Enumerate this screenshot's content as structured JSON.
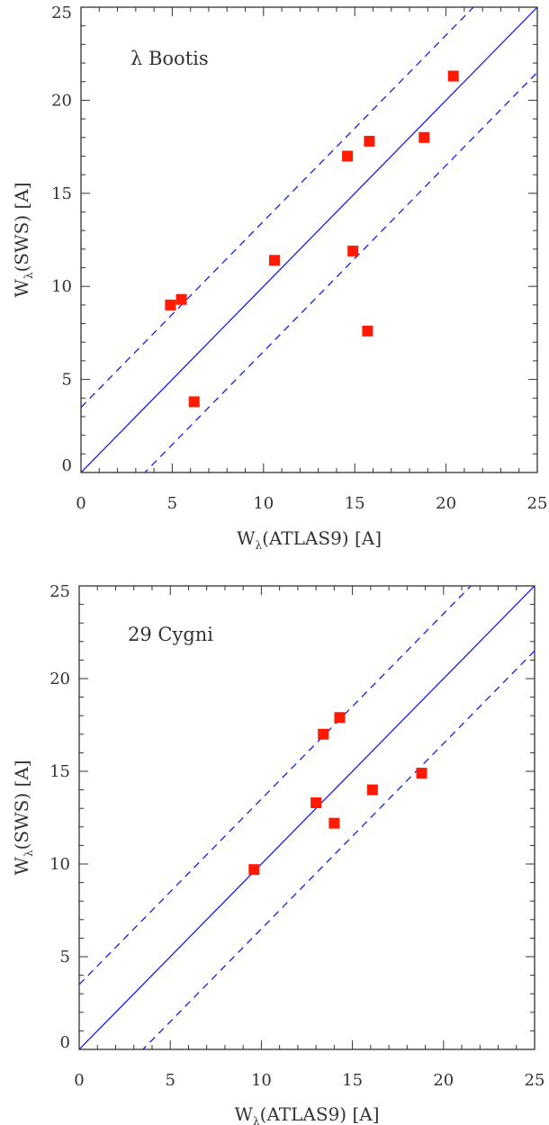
{
  "chart_data": [
    {
      "type": "scatter",
      "annotation": "λ Bootis",
      "xlabel": {
        "main": "W",
        "sub": "λ",
        "rest": "(ATLAS9) [A]"
      },
      "ylabel": {
        "main": "W",
        "sub": "λ",
        "rest": "(SWS) [A]"
      },
      "xlim": [
        0,
        25
      ],
      "ylim": [
        0,
        25
      ],
      "xticks": [
        "0",
        "5",
        "10",
        "15",
        "20",
        "25"
      ],
      "yticks": [
        "0",
        "5",
        "10",
        "15",
        "20",
        "25"
      ],
      "grid": false,
      "reference_lines": [
        {
          "style": "solid",
          "slope": 1,
          "intercept": 0
        },
        {
          "style": "dashed",
          "slope": 1,
          "intercept": 3.5
        },
        {
          "style": "dashed",
          "slope": 1,
          "intercept": -3.5
        }
      ],
      "points": [
        {
          "x": 4.9,
          "y": 9.0
        },
        {
          "x": 5.5,
          "y": 9.3
        },
        {
          "x": 6.2,
          "y": 3.8
        },
        {
          "x": 10.6,
          "y": 11.4
        },
        {
          "x": 14.6,
          "y": 17.0
        },
        {
          "x": 14.9,
          "y": 11.9
        },
        {
          "x": 15.7,
          "y": 7.6
        },
        {
          "x": 15.8,
          "y": 17.8
        },
        {
          "x": 18.8,
          "y": 18.0
        },
        {
          "x": 20.4,
          "y": 21.3
        }
      ]
    },
    {
      "type": "scatter",
      "annotation": "29 Cygni",
      "xlabel": {
        "main": "W",
        "sub": "λ",
        "rest": "(ATLAS9) [A]"
      },
      "ylabel": {
        "main": "W",
        "sub": "λ",
        "rest": "(SWS) [A]"
      },
      "xlim": [
        0,
        25
      ],
      "ylim": [
        0,
        25
      ],
      "xticks": [
        "0",
        "5",
        "10",
        "15",
        "20",
        "25"
      ],
      "yticks": [
        "0",
        "5",
        "10",
        "15",
        "20",
        "25"
      ],
      "grid": false,
      "reference_lines": [
        {
          "style": "solid",
          "slope": 1,
          "intercept": 0
        },
        {
          "style": "dashed",
          "slope": 1,
          "intercept": 3.5
        },
        {
          "style": "dashed",
          "slope": 1,
          "intercept": -3.5
        }
      ],
      "points": [
        {
          "x": 9.6,
          "y": 9.7
        },
        {
          "x": 13.0,
          "y": 13.3
        },
        {
          "x": 13.4,
          "y": 17.0
        },
        {
          "x": 14.0,
          "y": 12.2
        },
        {
          "x": 14.3,
          "y": 17.9
        },
        {
          "x": 16.1,
          "y": 14.0
        },
        {
          "x": 18.8,
          "y": 14.9
        }
      ]
    }
  ],
  "colors": {
    "line": "#1a1aee",
    "marker": "#ff1a00",
    "axis": "#333333"
  }
}
